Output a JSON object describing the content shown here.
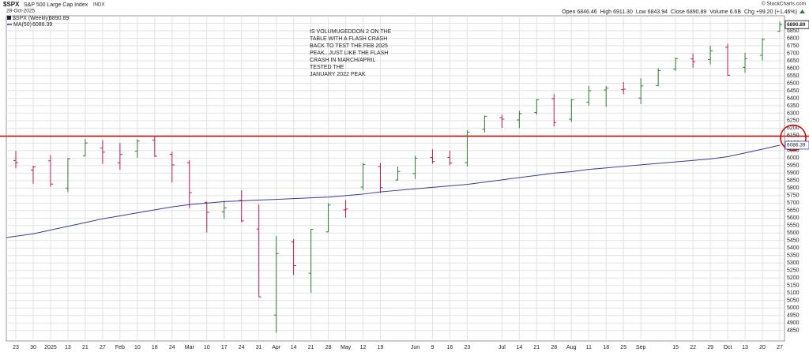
{
  "chart_data": {
    "type": "ohlc",
    "title": "$SPX",
    "subtitle": "S&P 500 Large Cap Index",
    "exchange": "INDX",
    "date": "28-Oct-2025",
    "source": "© StockCharts.com",
    "quote": [
      {
        "label": "Open",
        "value": "6846.46"
      },
      {
        "label": "High",
        "value": "6911.30"
      },
      {
        "label": "Low",
        "value": "6843.94"
      },
      {
        "label": "Close",
        "value": "6890.89"
      },
      {
        "label": "Volume",
        "value": "6.6B"
      },
      {
        "label": "Chg",
        "value": "+99.20 (+1.46%)"
      }
    ],
    "annotation": [
      "IS VOLUMUGEDDON 2 ON THE",
      "TABLE WITH A FLASH CRASH",
      "BACK TO TEST THE FEB 2025",
      "PEAK...JUST LIKE THE FLASH",
      "CRASH IN MARCH/APRIL",
      "TESTED THE",
      "JANUARY 2022 PEAK"
    ],
    "hline": 6147,
    "hline_color": "#cc0000",
    "categories": [
      "23",
      "30",
      "2025",
      "13",
      "21",
      "27",
      "Feb",
      "10",
      "18",
      "24",
      "Mar",
      "10",
      "17",
      "24",
      "31",
      "Apr",
      "14",
      "21",
      "28",
      "May",
      "12",
      "19",
      null,
      "Jun",
      "9",
      "16",
      "23",
      null,
      "Jul",
      "14",
      "21",
      "28",
      "Aug",
      "11",
      "18",
      "25",
      "Sep",
      null,
      "15",
      "22",
      "29",
      "Oct",
      "13",
      "20",
      "27"
    ],
    "up_color": "#2e7d32",
    "down_color": "#c2185b",
    "series": [
      {
        "name": "$SPX (Weekly)",
        "open": [
          5984,
          5920,
          5982,
          5800,
          6014,
          6067,
          5969,
          6046,
          6121,
          6026,
          5969,
          5705,
          5641,
          5718,
          5527,
          4953,
          5441,
          5232,
          5508,
          5655,
          5807,
          5944,
          5854,
          5897,
          6004,
          6005,
          5970,
          6193,
          6271,
          6255,
          6304,
          6397,
          6260,
          6374,
          6455,
          6457,
          6401,
          6485,
          6594,
          6662,
          6658,
          6740,
          6606,
          6686,
          6846.46
        ],
        "high": [
          6049,
          5949,
          6021,
          6000,
          6128,
          6120,
          6101,
          6127,
          6147,
          6043,
          5986,
          5710,
          5715,
          5786,
          5691,
          5481,
          5459,
          5528,
          5700,
          5720,
          5969,
          5968,
          5944,
          6016,
          6059,
          6050,
          6187,
          6284,
          6290,
          6315,
          6395,
          6427,
          6395,
          6481,
          6481,
          6508,
          6533,
          6600,
          6671,
          6699,
          6750,
          6764,
          6702,
          6800,
          6911.3
        ],
        "low": [
          5933,
          5829,
          5809,
          5773,
          6014,
          5962,
          5923,
          6003,
          6008,
          5837,
          5666,
          5504,
          5597,
          5572,
          5074,
          4835,
          5220,
          5101,
          5506,
          5603,
          5786,
          5767,
          5851,
          5861,
          5963,
          5952,
          5944,
          6170,
          6202,
          6201,
          6290,
          6212,
          6242,
          6351,
          6343,
          6427,
          6360,
          6480,
          6582,
          6603,
          6626,
          6551,
          6569,
          6652,
          6843.94
        ],
        "close": [
          5970,
          5942,
          5827,
          5996,
          6101,
          6040,
          6025,
          6114,
          6013,
          5955,
          5770,
          5639,
          5668,
          5581,
          5074,
          5363,
          5283,
          5525,
          5687,
          5660,
          5958,
          5803,
          5911,
          6000,
          5977,
          5968,
          6173,
          6279,
          6260,
          6297,
          6389,
          6238,
          6389,
          6450,
          6467,
          6460,
          6482,
          6584,
          6664,
          6644,
          6716,
          6553,
          6664,
          6792,
          6890.89
        ]
      },
      {
        "name": "MA(50)",
        "color": "#3a3a9a",
        "values": [
          5470,
          5495,
          5520,
          5545,
          5570,
          5595,
          5615,
          5635,
          5655,
          5675,
          5690,
          5700,
          5710,
          5715,
          5720,
          5725,
          5730,
          5735,
          5740,
          5750,
          5760,
          5775,
          5785,
          5795,
          5805,
          5815,
          5825,
          5840,
          5855,
          5870,
          5885,
          5900,
          5910,
          5925,
          5935,
          5945,
          5955,
          5965,
          5975,
          5985,
          5995,
          6010,
          6035,
          6060,
          6086.39
        ]
      }
    ],
    "ylim": [
      4780,
      6950
    ],
    "yticks": [
      4850,
      4900,
      4950,
      5000,
      5050,
      5100,
      5150,
      5200,
      5250,
      5300,
      5350,
      5400,
      5450,
      5500,
      5550,
      5600,
      5650,
      5700,
      5750,
      5800,
      5850,
      5900,
      5950,
      6000,
      6050,
      6100,
      6150,
      6200,
      6250,
      6300,
      6350,
      6400,
      6450,
      6500,
      6550,
      6600,
      6650,
      6700,
      6750,
      6800,
      6850,
      6900
    ],
    "grid": true
  }
}
